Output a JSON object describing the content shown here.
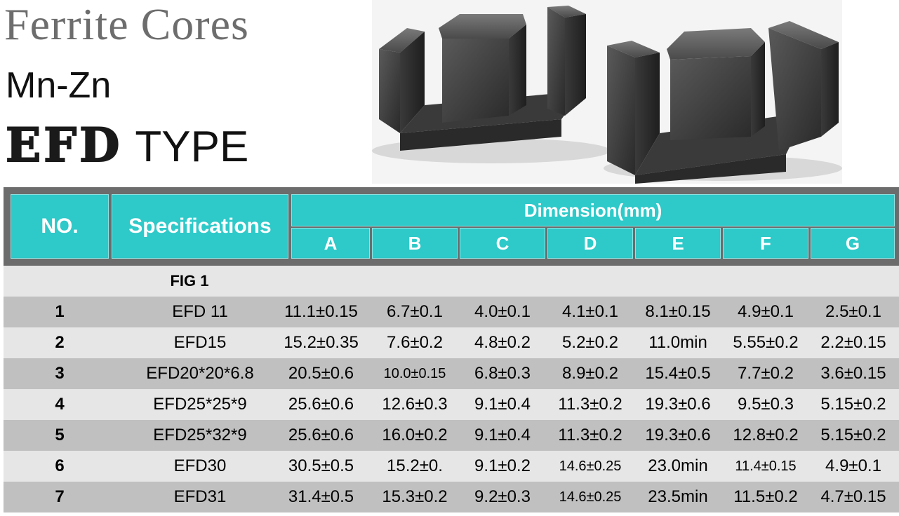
{
  "header": {
    "title": "Ferrite Cores",
    "material": "Mn-Zn",
    "type_bold": "EFD",
    "type_light": "TYPE"
  },
  "colors": {
    "accent": "#2ec9c9",
    "header_frame": "#6c6c6c",
    "row_dark": "#c0c0c0",
    "row_light": "#e6e6e6"
  },
  "table": {
    "headers": {
      "no": "NO.",
      "specifications": "Specifications",
      "dimension": "Dimension(mm)",
      "columns": [
        "A",
        "B",
        "C",
        "D",
        "E",
        "F",
        "G"
      ]
    },
    "fig_label": "FIG 1",
    "rows": [
      {
        "no": "1",
        "spec": "EFD 11",
        "a": "11.1±0.15",
        "b": "6.7±0.1",
        "c": "4.0±0.1",
        "d": "4.1±0.1",
        "e": "8.1±0.15",
        "f": "4.9±0.1",
        "g": "2.5±0.1"
      },
      {
        "no": "2",
        "spec": "EFD15",
        "a": "15.2±0.35",
        "b": "7.6±0.2",
        "c": "4.8±0.2",
        "d": "5.2±0.2",
        "e": "11.0min",
        "f": "5.55±0.2",
        "g": "2.2±0.15"
      },
      {
        "no": "3",
        "spec": "EFD20*20*6.8",
        "a": "20.5±0.6",
        "b": "10.0±0.15",
        "c": "6.8±0.3",
        "d": "8.9±0.2",
        "e": "15.4±0.5",
        "f": "7.7±0.2",
        "g": "3.6±0.15"
      },
      {
        "no": "4",
        "spec": "EFD25*25*9",
        "a": "25.6±0.6",
        "b": "12.6±0.3",
        "c": "9.1±0.4",
        "d": "11.3±0.2",
        "e": "19.3±0.6",
        "f": "9.5±0.3",
        "g": "5.15±0.2"
      },
      {
        "no": "5",
        "spec": "EFD25*32*9",
        "a": "25.6±0.6",
        "b": "16.0±0.2",
        "c": "9.1±0.4",
        "d": "11.3±0.2",
        "e": "19.3±0.6",
        "f": "12.8±0.2",
        "g": "5.15±0.2"
      },
      {
        "no": "6",
        "spec": "EFD30",
        "a": "30.5±0.5",
        "b": "15.2±0.",
        "c": "9.1±0.2",
        "d": "14.6±0.25",
        "e": "23.0min",
        "f": "11.4±0.15",
        "g": "4.9±0.1"
      },
      {
        "no": "7",
        "spec": "EFD31",
        "a": "31.4±0.5",
        "b": "15.3±0.2",
        "c": "9.2±0.3",
        "d": "14.6±0.25",
        "e": "23.5min",
        "f": "11.5±0.2",
        "g": "4.7±0.15"
      }
    ]
  }
}
